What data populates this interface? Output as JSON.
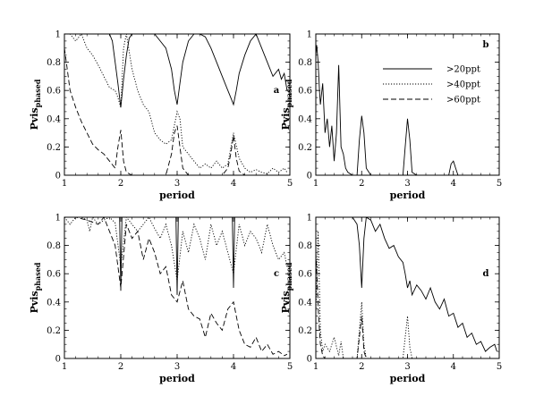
{
  "chart_data": [
    {
      "type": "line",
      "panel_label": "a",
      "xlabel": "period",
      "ylabel_main": "Pvis",
      "ylabel_sub": "phased",
      "xlim": [
        1,
        5
      ],
      "ylim": [
        0,
        1
      ],
      "xticks": [
        1,
        2,
        3,
        4,
        5
      ],
      "yticks": [
        0,
        0.2,
        0.4,
        0.6,
        0.8,
        1
      ],
      "legend": null,
      "series": [
        {
          "name": ">20ppt",
          "style": "solid",
          "x": [
            1,
            1.1,
            1.2,
            1.3,
            1.4,
            1.5,
            1.6,
            1.7,
            1.8,
            1.85,
            1.9,
            1.95,
            2,
            2.05,
            2.1,
            2.15,
            2.2,
            2.3,
            2.4,
            2.5,
            2.6,
            2.7,
            2.8,
            2.9,
            2.95,
            3,
            3.05,
            3.1,
            3.2,
            3.3,
            3.4,
            3.5,
            3.6,
            3.7,
            3.8,
            3.9,
            3.95,
            4,
            4.05,
            4.1,
            4.2,
            4.3,
            4.4,
            4.5,
            4.6,
            4.7,
            4.8,
            4.85,
            4.9,
            4.95
          ],
          "y": [
            1,
            1,
            1,
            1,
            1,
            1,
            1,
            1,
            1,
            0.95,
            0.8,
            0.65,
            0.48,
            0.68,
            0.85,
            0.97,
            1,
            1,
            1,
            1,
            1,
            0.95,
            0.9,
            0.75,
            0.6,
            0.5,
            0.65,
            0.8,
            0.95,
            1,
            1,
            0.98,
            0.9,
            0.8,
            0.7,
            0.6,
            0.55,
            0.5,
            0.6,
            0.72,
            0.85,
            0.95,
            1,
            0.9,
            0.8,
            0.7,
            0.75,
            0.68,
            0.72,
            0.6
          ]
        },
        {
          "name": ">40ppt",
          "style": "dotted",
          "x": [
            1,
            1.1,
            1.2,
            1.3,
            1.4,
            1.5,
            1.6,
            1.7,
            1.8,
            1.9,
            1.95,
            2,
            2.05,
            2.1,
            2.2,
            2.3,
            2.4,
            2.5,
            2.6,
            2.7,
            2.8,
            2.9,
            3,
            3.05,
            3.1,
            3.2,
            3.3,
            3.4,
            3.5,
            3.6,
            3.7,
            3.8,
            3.9,
            4,
            4.1,
            4.2,
            4.3,
            4.4,
            4.5,
            4.6,
            4.7,
            4.8,
            4.9,
            4.95
          ],
          "y": [
            1,
            1,
            0.95,
            1,
            0.9,
            0.85,
            0.78,
            0.7,
            0.62,
            0.6,
            0.55,
            0.48,
            0.9,
            1,
            0.75,
            0.6,
            0.5,
            0.45,
            0.3,
            0.25,
            0.22,
            0.25,
            0.45,
            0.4,
            0.2,
            0.15,
            0.1,
            0.05,
            0.08,
            0.05,
            0.1,
            0.05,
            0.08,
            0.3,
            0.12,
            0.05,
            0.02,
            0.04,
            0.02,
            0.01,
            0.05,
            0.02,
            0.05,
            0.02
          ]
        },
        {
          "name": ">60ppt",
          "style": "dashed",
          "x": [
            1,
            1.05,
            1.1,
            1.2,
            1.3,
            1.4,
            1.5,
            1.6,
            1.7,
            1.8,
            1.9,
            1.95,
            2,
            2.05,
            2.1,
            2.2,
            2.3,
            2.4,
            2.5,
            2.6,
            2.7,
            2.8,
            2.9,
            2.95,
            3,
            3.05,
            3.1,
            3.2,
            3.4,
            3.6,
            3.8,
            3.9,
            3.95,
            4,
            4.05,
            4.1,
            4.2,
            4.4,
            4.6,
            4.8,
            4.95
          ],
          "y": [
            0.9,
            0.75,
            0.6,
            0.48,
            0.38,
            0.3,
            0.22,
            0.18,
            0.15,
            0.1,
            0.05,
            0.2,
            0.32,
            0.1,
            0.02,
            0,
            0,
            0,
            0,
            0,
            0,
            0,
            0.15,
            0.3,
            0.35,
            0.2,
            0.05,
            0,
            0,
            0,
            0,
            0.05,
            0.15,
            0.28,
            0.12,
            0.03,
            0,
            0,
            0,
            0,
            0
          ]
        }
      ]
    },
    {
      "type": "line",
      "panel_label": "b",
      "xlabel": "period",
      "ylabel_main": "Pvis",
      "ylabel_sub": "phased",
      "xlim": [
        1,
        5
      ],
      "ylim": [
        0,
        1
      ],
      "xticks": [
        1,
        2,
        3,
        4,
        5
      ],
      "yticks": [
        0,
        0.2,
        0.4,
        0.6,
        0.8,
        1
      ],
      "legend": {
        "position": "top-right",
        "entries": [
          ">20ppt",
          ">40ppt",
          ">60ppt"
        ],
        "styles": [
          "solid",
          "dotted",
          "dashed"
        ]
      },
      "series": [
        {
          "name": ">20ppt",
          "style": "solid",
          "x": [
            1,
            1.02,
            1.05,
            1.08,
            1.1,
            1.15,
            1.2,
            1.25,
            1.3,
            1.35,
            1.4,
            1.45,
            1.5,
            1.55,
            1.6,
            1.65,
            1.7,
            1.8,
            1.9,
            1.95,
            2,
            2.05,
            2.1,
            2.2,
            2.5,
            2.8,
            2.9,
            2.95,
            3,
            3.05,
            3.1,
            3.2,
            3.5,
            3.8,
            3.9,
            3.95,
            4,
            4.05,
            4.1,
            4.2,
            4.5,
            5
          ],
          "y": [
            0.85,
            0.92,
            0.8,
            0.6,
            0.5,
            0.65,
            0.3,
            0.4,
            0.2,
            0.35,
            0.1,
            0.3,
            0.78,
            0.2,
            0.15,
            0.05,
            0.02,
            0,
            0,
            0.25,
            0.42,
            0.3,
            0.05,
            0,
            0,
            0,
            0,
            0.2,
            0.4,
            0.25,
            0.02,
            0,
            0,
            0,
            0,
            0.08,
            0.1,
            0.05,
            0,
            0,
            0,
            0
          ]
        }
      ]
    },
    {
      "type": "line",
      "panel_label": "c",
      "xlabel": "period",
      "ylabel_main": "Pvis",
      "ylabel_sub": "phased",
      "xlim": [
        1,
        5
      ],
      "ylim": [
        0,
        1
      ],
      "xticks": [
        1,
        2,
        3,
        4,
        5
      ],
      "yticks": [
        0,
        0.2,
        0.4,
        0.6,
        0.8,
        1
      ],
      "legend": null,
      "series": [
        {
          "name": ">20ppt",
          "style": "solid",
          "x": [
            1,
            1.5,
            1.98,
            2,
            2.02,
            2.5,
            2.98,
            3,
            3.02,
            3.5,
            3.98,
            4,
            4.02,
            4.5,
            5
          ],
          "y": [
            1,
            1,
            1,
            0.48,
            1,
            1,
            1,
            0.45,
            1,
            1,
            1,
            0.5,
            1,
            1,
            1
          ]
        },
        {
          "name": ">40ppt",
          "style": "dotted",
          "x": [
            1,
            1.1,
            1.2,
            1.3,
            1.4,
            1.45,
            1.5,
            1.6,
            1.7,
            1.8,
            1.9,
            2,
            2.1,
            2.2,
            2.3,
            2.4,
            2.5,
            2.6,
            2.7,
            2.8,
            2.9,
            3,
            3.1,
            3.2,
            3.3,
            3.4,
            3.5,
            3.6,
            3.7,
            3.8,
            3.9,
            4,
            4.1,
            4.2,
            4.3,
            4.4,
            4.5,
            4.6,
            4.7,
            4.8,
            4.9,
            4.95
          ],
          "y": [
            1,
            0.95,
            1,
            1,
            0.98,
            0.9,
            1,
            0.95,
            0.98,
            1,
            0.96,
            0.65,
            1,
            0.95,
            0.9,
            0.95,
            1,
            0.92,
            0.85,
            0.95,
            0.8,
            0.55,
            0.9,
            0.75,
            0.95,
            0.85,
            0.7,
            0.95,
            0.8,
            0.9,
            0.75,
            0.6,
            0.95,
            0.8,
            0.9,
            0.85,
            0.75,
            0.95,
            0.8,
            0.7,
            0.75,
            0.65
          ]
        },
        {
          "name": ">60ppt",
          "style": "dashed",
          "x": [
            1,
            1.2,
            1.4,
            1.6,
            1.7,
            1.8,
            1.9,
            2,
            2.1,
            2.2,
            2.3,
            2.4,
            2.5,
            2.6,
            2.7,
            2.8,
            2.9,
            3,
            3.1,
            3.2,
            3.3,
            3.4,
            3.5,
            3.6,
            3.7,
            3.8,
            3.9,
            4,
            4.1,
            4.2,
            4.3,
            4.4,
            4.5,
            4.6,
            4.7,
            4.8,
            4.9,
            4.95
          ],
          "y": [
            1,
            1,
            0.98,
            0.95,
            1,
            0.9,
            0.8,
            0.5,
            0.95,
            0.85,
            0.9,
            0.7,
            0.85,
            0.75,
            0.6,
            0.65,
            0.45,
            0.4,
            0.55,
            0.35,
            0.3,
            0.28,
            0.15,
            0.32,
            0.25,
            0.2,
            0.35,
            0.4,
            0.2,
            0.1,
            0.08,
            0.15,
            0.05,
            0.1,
            0.03,
            0.05,
            0.02,
            0.03
          ]
        }
      ]
    },
    {
      "type": "line",
      "panel_label": "d",
      "xlabel": "period",
      "ylabel_main": "Pvis",
      "ylabel_sub": "phased",
      "xlim": [
        1,
        5
      ],
      "ylim": [
        0,
        1
      ],
      "xticks": [
        1,
        2,
        3,
        4,
        5
      ],
      "yticks": [
        0,
        0.2,
        0.4,
        0.6,
        0.8,
        1
      ],
      "legend": null,
      "series": [
        {
          "name": ">20ppt",
          "style": "solid",
          "x": [
            1,
            1.2,
            1.4,
            1.6,
            1.8,
            1.9,
            1.95,
            2,
            2.05,
            2.1,
            2.2,
            2.3,
            2.4,
            2.5,
            2.6,
            2.7,
            2.8,
            2.9,
            2.95,
            3,
            3.05,
            3.1,
            3.2,
            3.3,
            3.4,
            3.5,
            3.6,
            3.7,
            3.8,
            3.9,
            4,
            4.1,
            4.2,
            4.3,
            4.4,
            4.5,
            4.6,
            4.7,
            4.8,
            4.9,
            4.95
          ],
          "y": [
            1,
            1,
            1,
            1,
            1,
            0.95,
            0.8,
            0.5,
            0.85,
            1,
            0.98,
            0.9,
            0.95,
            0.85,
            0.78,
            0.8,
            0.72,
            0.68,
            0.6,
            0.5,
            0.55,
            0.45,
            0.52,
            0.48,
            0.42,
            0.5,
            0.4,
            0.35,
            0.42,
            0.3,
            0.32,
            0.22,
            0.25,
            0.15,
            0.18,
            0.1,
            0.12,
            0.05,
            0.08,
            0.1,
            0.05
          ]
        },
        {
          "name": ">40ppt",
          "style": "dotted",
          "x": [
            1,
            1.05,
            1.1,
            1.15,
            1.2,
            1.3,
            1.4,
            1.5,
            1.55,
            1.6,
            1.7,
            1.8,
            1.9,
            1.95,
            2,
            2.05,
            2.1,
            2.3,
            2.6,
            2.9,
            2.95,
            3,
            3.05,
            3.1,
            3.3,
            4,
            5
          ],
          "y": [
            0.3,
            0.9,
            0.2,
            0.05,
            0.1,
            0.05,
            0.15,
            0.02,
            0.12,
            0,
            0,
            0,
            0,
            0.2,
            0.4,
            0.1,
            0,
            0,
            0,
            0,
            0.15,
            0.3,
            0.08,
            0,
            0,
            0,
            0
          ]
        },
        {
          "name": ">60ppt",
          "style": "dashed",
          "x": [
            1,
            1.03,
            1.06,
            1.1,
            1.15,
            1.2,
            1.3,
            1.5,
            1.9,
            1.95,
            2,
            2.05,
            2.1,
            2.3,
            3,
            5
          ],
          "y": [
            0.75,
            0.55,
            0.3,
            0.1,
            0.02,
            0,
            0,
            0,
            0,
            0.15,
            0.3,
            0.05,
            0,
            0,
            0,
            0
          ]
        }
      ]
    }
  ]
}
